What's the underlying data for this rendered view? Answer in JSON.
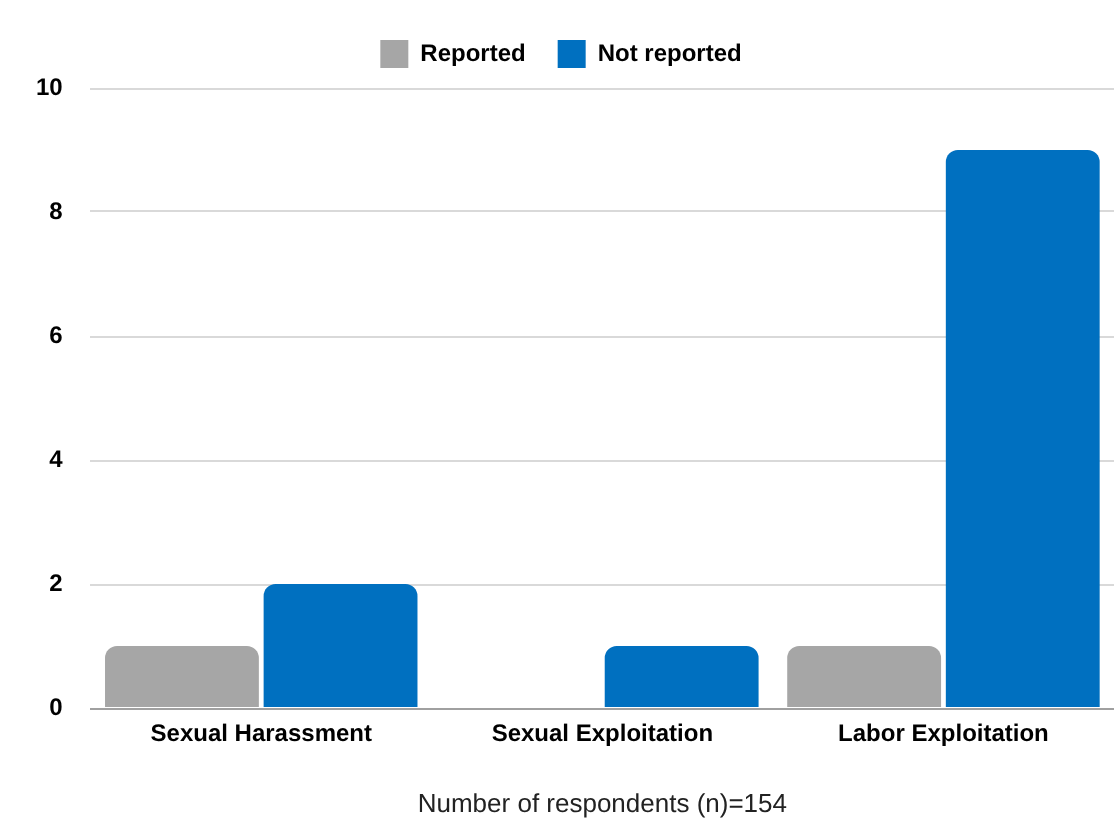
{
  "chart_data": {
    "type": "bar",
    "xlabel": "Number of respondents (n)=154",
    "categories": [
      "Sexual Harassment",
      "Sexual Exploitation",
      "Labor Exploitation"
    ],
    "series": [
      {
        "name": "Reported",
        "color": "#a6a6a6",
        "values": [
          1,
          0,
          1
        ]
      },
      {
        "name": "Not reported",
        "color": "#0070c0",
        "values": [
          2,
          1,
          9
        ]
      }
    ],
    "ylim": [
      0,
      10
    ],
    "yticks": [
      0,
      2,
      4,
      6,
      8,
      10
    ],
    "grid": "y",
    "legend": "top"
  }
}
